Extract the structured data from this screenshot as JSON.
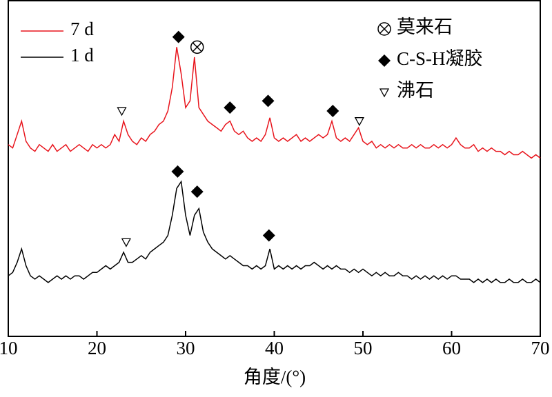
{
  "chart_data": {
    "type": "line",
    "xlabel": "角度/(°)",
    "xlim": [
      10,
      70
    ],
    "xticks": [
      10,
      20,
      30,
      40,
      50,
      60,
      70
    ],
    "ylim": [
      0,
      100
    ],
    "x": [
      10,
      10.5,
      11,
      11.5,
      12,
      12.5,
      13,
      13.5,
      14,
      14.5,
      15,
      15.5,
      16,
      16.5,
      17,
      17.5,
      18,
      18.5,
      19,
      19.5,
      20,
      20.5,
      21,
      21.5,
      22,
      22.5,
      23,
      23.5,
      24,
      24.5,
      25,
      25.5,
      26,
      26.5,
      27,
      27.5,
      28,
      28.5,
      29,
      29.5,
      30,
      30.5,
      31,
      31.5,
      32,
      32.5,
      33,
      33.5,
      34,
      34.5,
      35,
      35.5,
      36,
      36.5,
      37,
      37.5,
      38,
      38.5,
      39,
      39.5,
      40,
      40.5,
      41,
      41.5,
      42,
      42.5,
      43,
      43.5,
      44,
      44.5,
      45,
      45.5,
      46,
      46.5,
      47,
      47.5,
      48,
      48.5,
      49,
      49.5,
      50,
      50.5,
      51,
      51.5,
      52,
      52.5,
      53,
      53.5,
      54,
      54.5,
      55,
      55.5,
      56,
      56.5,
      57,
      57.5,
      58,
      58.5,
      59,
      59.5,
      60,
      60.5,
      61,
      61.5,
      62,
      62.5,
      63,
      63.5,
      64,
      64.5,
      65,
      65.5,
      66,
      66.5,
      67,
      67.5,
      68,
      68.5,
      69,
      69.5,
      70
    ],
    "series": [
      {
        "name": "7 d",
        "color": "#e8141c",
        "values": [
          57,
          56,
          60,
          64,
          58,
          56,
          55,
          57,
          56,
          55,
          57,
          55,
          56,
          57,
          55,
          56,
          57,
          56,
          55,
          57,
          56,
          57,
          56,
          57,
          60,
          58,
          64,
          60,
          58,
          57,
          59,
          58,
          60,
          61,
          63,
          64,
          67,
          74,
          86,
          78,
          68,
          70,
          83,
          68,
          66,
          64,
          63,
          62,
          61,
          63,
          64,
          61,
          60,
          61,
          59,
          58,
          59,
          58,
          60,
          65,
          59,
          58,
          59,
          58,
          59,
          60,
          58,
          59,
          58,
          59,
          60,
          59,
          60,
          64,
          59,
          58,
          59,
          58,
          60,
          62,
          58,
          57,
          58,
          56,
          57,
          56,
          57,
          56,
          57,
          56,
          56,
          57,
          56,
          57,
          56,
          56,
          57,
          56,
          57,
          56,
          57,
          59,
          57,
          56,
          56,
          57,
          55,
          56,
          55,
          56,
          55,
          55,
          54,
          55,
          54,
          54,
          55,
          54,
          53,
          54,
          53
        ]
      },
      {
        "name": "1 d",
        "color": "#000000",
        "values": [
          18,
          19,
          22,
          26,
          21,
          18,
          17,
          18,
          17,
          16,
          17,
          18,
          17,
          18,
          17,
          18,
          18,
          17,
          18,
          19,
          19,
          20,
          21,
          20,
          21,
          22,
          25,
          22,
          22,
          23,
          24,
          23,
          25,
          26,
          27,
          28,
          30,
          36,
          44,
          46,
          36,
          30,
          36,
          38,
          31,
          28,
          26,
          25,
          24,
          23,
          24,
          23,
          22,
          21,
          21,
          20,
          21,
          20,
          21,
          26,
          20,
          21,
          20,
          21,
          20,
          21,
          20,
          21,
          21,
          22,
          21,
          20,
          21,
          20,
          21,
          20,
          20,
          19,
          20,
          19,
          20,
          19,
          18,
          19,
          18,
          19,
          18,
          18,
          19,
          18,
          18,
          17,
          18,
          17,
          18,
          17,
          18,
          17,
          18,
          17,
          18,
          18,
          17,
          17,
          17,
          16,
          17,
          16,
          17,
          16,
          17,
          16,
          16,
          17,
          16,
          16,
          17,
          16,
          16,
          17,
          16
        ]
      }
    ],
    "legend": "upper left",
    "symbols": [
      {
        "symbol": "circle-x",
        "label": "莫来石"
      },
      {
        "symbol": "diamond",
        "label": "C-S-H凝胶"
      },
      {
        "symbol": "triangle",
        "label": "沸石"
      }
    ],
    "markers": [
      {
        "symbol": 1,
        "x": 29.2,
        "y": 89
      },
      {
        "symbol": 0,
        "x": 31.3,
        "y": 86
      },
      {
        "symbol": 1,
        "x": 35.0,
        "y": 68
      },
      {
        "symbol": 1,
        "x": 39.3,
        "y": 70
      },
      {
        "symbol": 1,
        "x": 46.6,
        "y": 67
      },
      {
        "symbol": 2,
        "x": 22.8,
        "y": 67
      },
      {
        "symbol": 2,
        "x": 49.6,
        "y": 64
      },
      {
        "symbol": 1,
        "x": 29.1,
        "y": 49
      },
      {
        "symbol": 1,
        "x": 31.3,
        "y": 43
      },
      {
        "symbol": 1,
        "x": 39.4,
        "y": 30
      },
      {
        "symbol": 2,
        "x": 23.3,
        "y": 28
      }
    ]
  }
}
